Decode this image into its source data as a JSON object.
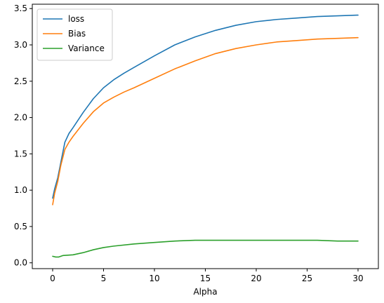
{
  "chart_data": {
    "type": "line",
    "title": "",
    "xlabel": "Alpha",
    "ylabel": "",
    "xlim": [
      -2,
      32
    ],
    "ylim": [
      -0.08,
      3.56
    ],
    "xticks": [
      0,
      5,
      10,
      15,
      20,
      25,
      30
    ],
    "xtick_labels": [
      "0",
      "5",
      "10",
      "15",
      "20",
      "25",
      "30"
    ],
    "yticks": [
      0.0,
      0.5,
      1.0,
      1.5,
      2.0,
      2.5,
      3.0,
      3.5
    ],
    "ytick_labels": [
      "0.0",
      "0.5",
      "1.0",
      "1.5",
      "2.0",
      "2.5",
      "3.0",
      "3.5"
    ],
    "grid": false,
    "legend_position": "top-left",
    "series": [
      {
        "name": "loss",
        "color": "#1f77b4",
        "points": [
          [
            0,
            0.89
          ],
          [
            0.2,
            1.02
          ],
          [
            0.5,
            1.17
          ],
          [
            0.8,
            1.38
          ],
          [
            1.2,
            1.66
          ],
          [
            1.6,
            1.78
          ],
          [
            2,
            1.86
          ],
          [
            3,
            2.07
          ],
          [
            4,
            2.26
          ],
          [
            5,
            2.41
          ],
          [
            6,
            2.52
          ],
          [
            7,
            2.61
          ],
          [
            8,
            2.69
          ],
          [
            10,
            2.85
          ],
          [
            12,
            3.0
          ],
          [
            14,
            3.11
          ],
          [
            16,
            3.2
          ],
          [
            18,
            3.27
          ],
          [
            20,
            3.32
          ],
          [
            22,
            3.35
          ],
          [
            24,
            3.37
          ],
          [
            26,
            3.39
          ],
          [
            28,
            3.4
          ],
          [
            30,
            3.41
          ]
        ]
      },
      {
        "name": "Bias",
        "color": "#ff7f0e",
        "points": [
          [
            0,
            0.8
          ],
          [
            0.2,
            0.96
          ],
          [
            0.5,
            1.12
          ],
          [
            0.8,
            1.34
          ],
          [
            1.2,
            1.56
          ],
          [
            1.6,
            1.66
          ],
          [
            2,
            1.74
          ],
          [
            3,
            1.92
          ],
          [
            4,
            2.08
          ],
          [
            5,
            2.2
          ],
          [
            6,
            2.28
          ],
          [
            7,
            2.35
          ],
          [
            8,
            2.41
          ],
          [
            10,
            2.54
          ],
          [
            12,
            2.67
          ],
          [
            14,
            2.78
          ],
          [
            16,
            2.88
          ],
          [
            18,
            2.95
          ],
          [
            20,
            3.0
          ],
          [
            22,
            3.04
          ],
          [
            24,
            3.06
          ],
          [
            26,
            3.08
          ],
          [
            28,
            3.09
          ],
          [
            30,
            3.1
          ]
        ]
      },
      {
        "name": "Variance",
        "color": "#2ca02c",
        "points": [
          [
            0,
            0.09
          ],
          [
            0.3,
            0.08
          ],
          [
            0.6,
            0.08
          ],
          [
            1,
            0.1
          ],
          [
            2,
            0.11
          ],
          [
            3,
            0.14
          ],
          [
            4,
            0.18
          ],
          [
            5,
            0.21
          ],
          [
            6,
            0.23
          ],
          [
            8,
            0.26
          ],
          [
            10,
            0.28
          ],
          [
            12,
            0.3
          ],
          [
            14,
            0.31
          ],
          [
            16,
            0.31
          ],
          [
            18,
            0.31
          ],
          [
            20,
            0.31
          ],
          [
            22,
            0.31
          ],
          [
            24,
            0.31
          ],
          [
            26,
            0.31
          ],
          [
            28,
            0.3
          ],
          [
            30,
            0.3
          ]
        ]
      }
    ]
  }
}
